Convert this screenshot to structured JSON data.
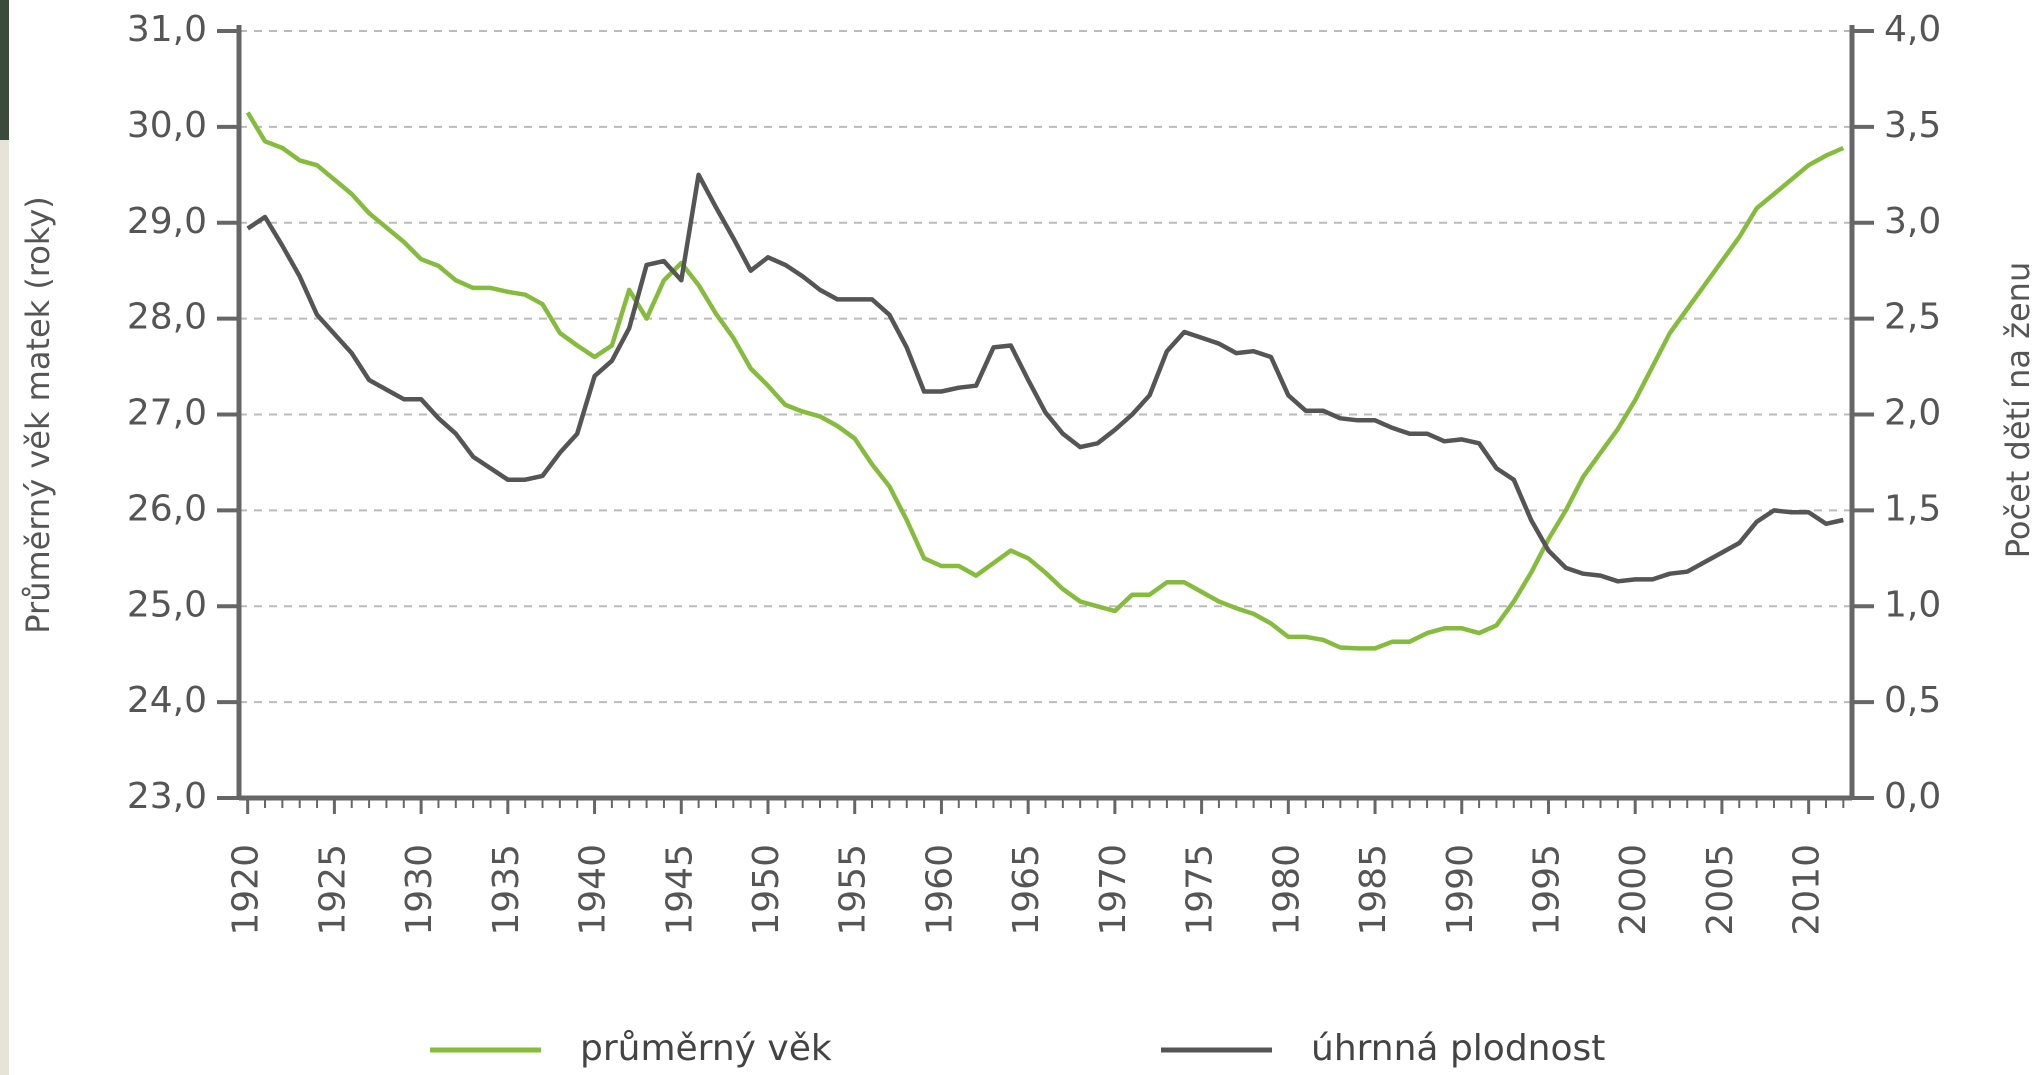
{
  "chart_data": {
    "type": "line",
    "y_label": "Průměrný věk matek (roky)",
    "y2_label": "Počet dětí na ženu",
    "x": [
      1920,
      1921,
      1922,
      1923,
      1924,
      1925,
      1926,
      1927,
      1928,
      1929,
      1930,
      1931,
      1932,
      1933,
      1934,
      1935,
      1936,
      1937,
      1938,
      1939,
      1940,
      1941,
      1942,
      1943,
      1944,
      1945,
      1946,
      1947,
      1948,
      1949,
      1950,
      1951,
      1952,
      1953,
      1954,
      1955,
      1956,
      1957,
      1958,
      1959,
      1960,
      1961,
      1962,
      1963,
      1964,
      1965,
      1966,
      1967,
      1968,
      1969,
      1970,
      1971,
      1972,
      1973,
      1974,
      1975,
      1976,
      1977,
      1978,
      1979,
      1980,
      1981,
      1982,
      1983,
      1984,
      1985,
      1986,
      1987,
      1988,
      1989,
      1990,
      1991,
      1992,
      1993,
      1994,
      1995,
      1996,
      1997,
      1998,
      1999,
      2000,
      2001,
      2002,
      2003,
      2004,
      2005,
      2006,
      2007,
      2008,
      2009,
      2010,
      2011,
      2012
    ],
    "series": [
      {
        "name": "průměrný věk",
        "color": "#86bc3e",
        "axis": "y",
        "values": [
          30.15,
          29.85,
          29.78,
          29.65,
          29.6,
          29.45,
          29.3,
          29.1,
          28.95,
          28.8,
          28.62,
          28.55,
          28.4,
          28.32,
          28.32,
          28.28,
          28.25,
          28.15,
          27.85,
          27.72,
          27.6,
          27.72,
          28.3,
          28.0,
          28.4,
          28.58,
          28.35,
          28.05,
          27.8,
          27.48,
          27.3,
          27.1,
          27.03,
          26.98,
          26.88,
          26.75,
          26.48,
          26.25,
          25.9,
          25.5,
          25.42,
          25.42,
          25.32,
          25.45,
          25.58,
          25.5,
          25.35,
          25.18,
          25.05,
          25.0,
          24.95,
          25.12,
          25.12,
          25.25,
          25.25,
          25.15,
          25.05,
          24.98,
          24.92,
          24.82,
          24.68,
          24.68,
          24.65,
          24.57,
          24.56,
          24.56,
          24.63,
          24.63,
          24.72,
          24.77,
          24.77,
          24.72,
          24.8,
          25.05,
          25.35,
          25.7,
          26.0,
          26.35,
          26.6,
          26.85,
          27.15,
          27.5,
          27.85,
          28.1,
          28.35,
          28.6,
          28.85,
          29.15,
          29.3,
          29.45,
          29.6,
          29.7,
          29.78
        ]
      },
      {
        "name": "úhrnná plodnost",
        "color": "#555555",
        "axis": "y2",
        "values": [
          2.97,
          3.03,
          2.88,
          2.72,
          2.52,
          2.42,
          2.32,
          2.18,
          2.13,
          2.08,
          2.08,
          1.98,
          1.9,
          1.78,
          1.72,
          1.66,
          1.66,
          1.68,
          1.8,
          1.9,
          2.2,
          2.28,
          2.45,
          2.78,
          2.8,
          2.7,
          3.25,
          3.08,
          2.92,
          2.75,
          2.82,
          2.78,
          2.72,
          2.65,
          2.6,
          2.6,
          2.6,
          2.52,
          2.35,
          2.12,
          2.12,
          2.14,
          2.15,
          2.35,
          2.36,
          2.18,
          2.01,
          1.9,
          1.83,
          1.85,
          1.92,
          2.0,
          2.1,
          2.33,
          2.43,
          2.4,
          2.37,
          2.32,
          2.33,
          2.3,
          2.1,
          2.02,
          2.02,
          1.98,
          1.97,
          1.97,
          1.93,
          1.9,
          1.9,
          1.86,
          1.87,
          1.85,
          1.72,
          1.66,
          1.45,
          1.29,
          1.2,
          1.17,
          1.16,
          1.13,
          1.14,
          1.14,
          1.17,
          1.18,
          1.23,
          1.28,
          1.33,
          1.44,
          1.5,
          1.49,
          1.49,
          1.43,
          1.45
        ]
      }
    ],
    "xlim": [
      1919.5,
      2012.5
    ],
    "xticks": [
      1920,
      1925,
      1930,
      1935,
      1940,
      1945,
      1950,
      1955,
      1960,
      1965,
      1970,
      1975,
      1980,
      1985,
      1990,
      1995,
      2000,
      2005,
      2010
    ],
    "ylim": [
      23,
      31
    ],
    "yticks": [
      {
        "value": 23,
        "label": "23,0"
      },
      {
        "value": 24,
        "label": "24,0"
      },
      {
        "value": 25,
        "label": "25,0"
      },
      {
        "value": 26,
        "label": "26,0"
      },
      {
        "value": 27,
        "label": "27,0"
      },
      {
        "value": 28,
        "label": "28,0"
      },
      {
        "value": 29,
        "label": "29,0"
      },
      {
        "value": 30,
        "label": "30,0"
      },
      {
        "value": 31,
        "label": "31,0"
      }
    ],
    "y2lim": [
      0,
      4
    ],
    "y2ticks": [
      {
        "value": 0,
        "label": "0,0"
      },
      {
        "value": 0.5,
        "label": "0,5"
      },
      {
        "value": 1,
        "label": "1,0"
      },
      {
        "value": 1.5,
        "label": "1,5"
      },
      {
        "value": 2,
        "label": "2,0"
      },
      {
        "value": 2.5,
        "label": "2,5"
      },
      {
        "value": 3,
        "label": "3,0"
      },
      {
        "value": 3.5,
        "label": "3,5"
      },
      {
        "value": 4,
        "label": "4,0"
      }
    ],
    "grid": true,
    "legend": "bottom"
  }
}
